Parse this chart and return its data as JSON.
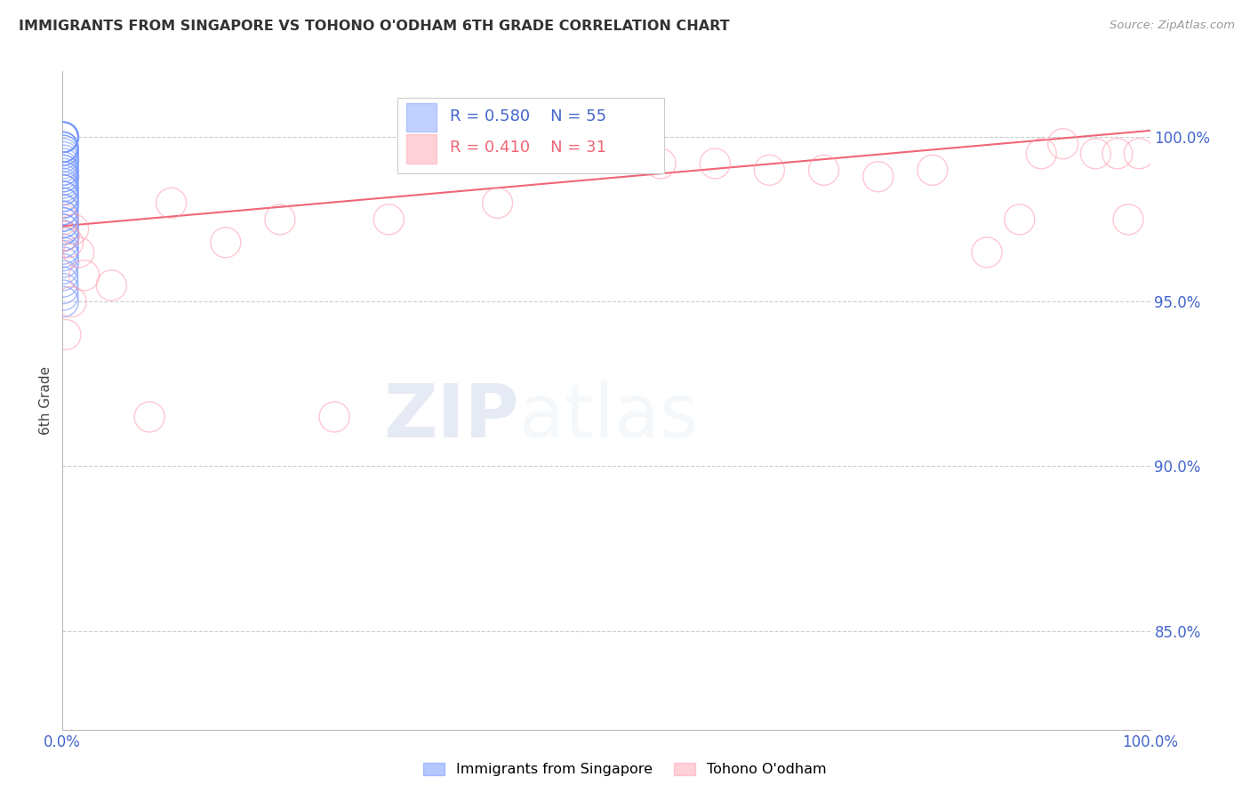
{
  "title": "IMMIGRANTS FROM SINGAPORE VS TOHONO O'ODHAM 6TH GRADE CORRELATION CHART",
  "source": "Source: ZipAtlas.com",
  "ylabel": "6th Grade",
  "y_tick_values": [
    85.0,
    90.0,
    95.0,
    100.0
  ],
  "xlim": [
    0.0,
    100.0
  ],
  "ylim": [
    82.0,
    102.0
  ],
  "legend_R1": "R = 0.580",
  "legend_N1": "N = 55",
  "legend_R2": "R = 0.410",
  "legend_N2": "N = 31",
  "color_blue": "#7799FF",
  "color_pink": "#FF99AA",
  "color_trend": "#EE6677",
  "color_title": "#333333",
  "color_source": "#999999",
  "color_axis_blue": "#4466CC",
  "color_grid": "#CCCCCC",
  "blue_scatter_x": [
    0.02,
    0.03,
    0.04,
    0.05,
    0.06,
    0.07,
    0.08,
    0.09,
    0.1,
    0.02,
    0.03,
    0.04,
    0.05,
    0.06,
    0.07,
    0.08,
    0.09,
    0.1,
    0.02,
    0.03,
    0.04,
    0.05,
    0.06,
    0.07,
    0.08,
    0.09,
    0.1,
    0.02,
    0.03,
    0.04,
    0.05,
    0.06,
    0.07,
    0.08,
    0.09,
    0.1,
    0.02,
    0.03,
    0.04,
    0.05,
    0.06,
    0.07,
    0.08,
    0.09,
    0.1,
    0.02,
    0.03,
    0.04,
    0.05,
    0.06,
    0.07,
    0.08,
    0.09,
    0.1,
    0.02
  ],
  "blue_scatter_y": [
    100.0,
    100.0,
    100.0,
    100.0,
    100.0,
    100.0,
    100.0,
    100.0,
    100.0,
    99.7,
    99.7,
    99.7,
    99.7,
    99.6,
    99.6,
    99.5,
    99.4,
    99.3,
    99.1,
    99.0,
    98.9,
    98.8,
    98.7,
    98.5,
    98.4,
    98.2,
    98.0,
    97.8,
    97.6,
    97.4,
    97.2,
    97.0,
    96.8,
    96.6,
    96.4,
    96.2,
    96.0,
    95.8,
    95.6,
    95.4,
    95.2,
    95.0,
    99.2,
    99.0,
    98.8,
    98.6,
    98.4,
    98.2,
    98.0,
    97.8,
    97.6,
    97.4,
    97.2,
    97.0,
    96.5
  ],
  "pink_scatter_x": [
    0.05,
    0.15,
    0.5,
    1.0,
    2.0,
    4.5,
    8.0,
    10.0,
    15.0,
    20.0,
    25.0,
    30.0,
    40.0,
    50.0,
    55.0,
    60.0,
    65.0,
    70.0,
    75.0,
    80.0,
    85.0,
    88.0,
    90.0,
    92.0,
    95.0,
    97.0,
    98.0,
    99.0,
    0.3,
    0.8,
    1.5
  ],
  "pink_scatter_y": [
    97.5,
    97.0,
    96.8,
    97.2,
    95.8,
    95.5,
    91.5,
    98.0,
    96.8,
    97.5,
    91.5,
    97.5,
    98.0,
    99.5,
    99.2,
    99.2,
    99.0,
    99.0,
    98.8,
    99.0,
    96.5,
    97.5,
    99.5,
    99.8,
    99.5,
    99.5,
    97.5,
    99.5,
    94.0,
    95.0,
    96.5
  ],
  "trend_x": [
    0.0,
    100.0
  ],
  "trend_y": [
    97.3,
    100.2
  ]
}
